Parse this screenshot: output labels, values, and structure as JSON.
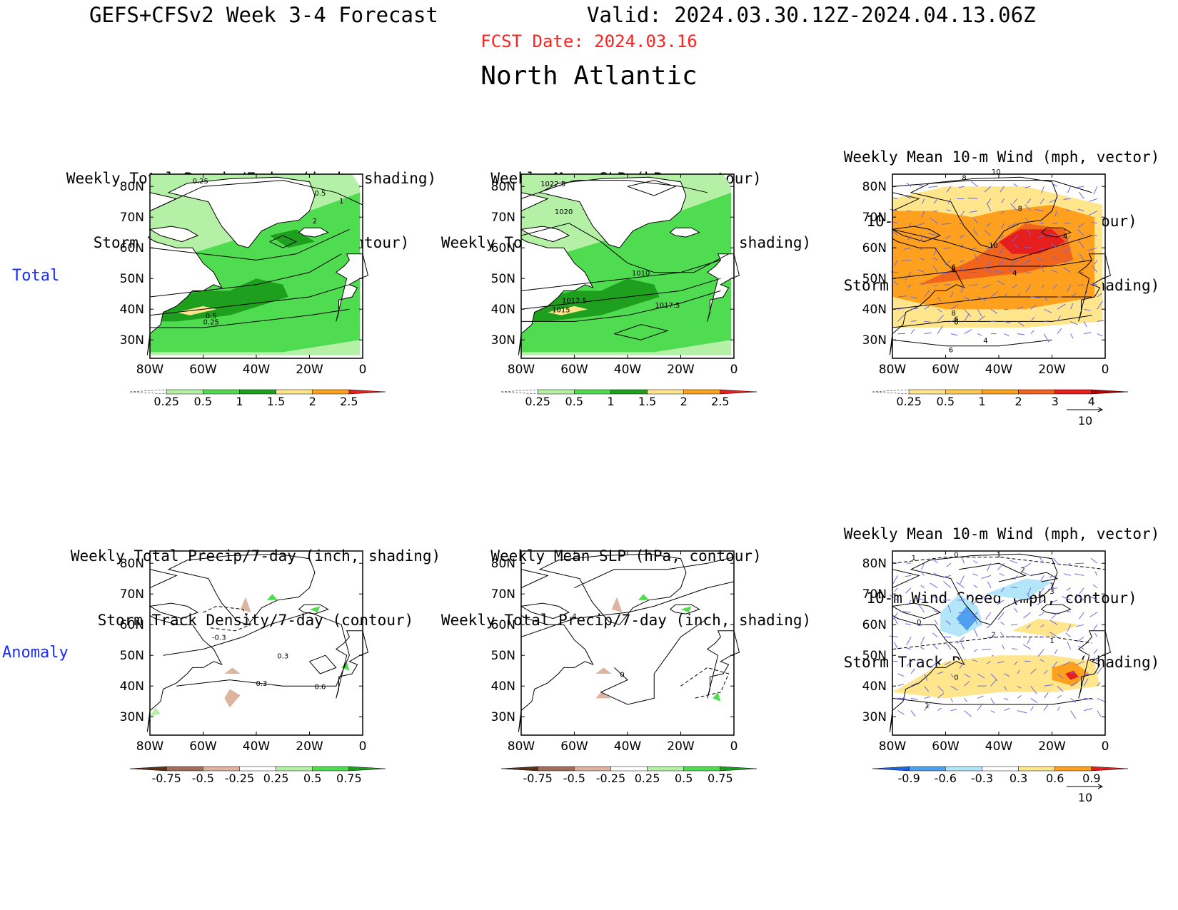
{
  "header": {
    "title_left": "GEFS+CFSv2 Week 3-4 Forecast",
    "title_right": "Valid: 2024.03.30.12Z-2024.04.13.06Z",
    "fcst_date": "FCST Date: 2024.03.16",
    "region": "North Atlantic"
  },
  "rows": [
    {
      "label": "Total"
    },
    {
      "label": "Anomaly"
    }
  ],
  "axes": {
    "lat_labels": [
      "80N",
      "70N",
      "60N",
      "50N",
      "40N",
      "30N"
    ],
    "lon_labels": [
      "80W",
      "60W",
      "40W",
      "20W",
      "0"
    ]
  },
  "panels": [
    {
      "title": [
        "Weekly Total Precip/7-day (inch, shading)",
        "Storm Track Density/7-day (contour)"
      ],
      "colorbar": {
        "labels": [
          "0.25",
          "0.5",
          "1",
          "1.5",
          "2",
          "2.5"
        ],
        "colors": [
          "#b4f0a5",
          "#50dc50",
          "#1ea01e",
          "#ffe68c",
          "#ffa01e",
          "#e61e1e"
        ]
      },
      "contour_labels": [
        "0.25",
        "0.5",
        "1",
        "2",
        "0.5",
        "0.25"
      ]
    },
    {
      "title": [
        "Weekly Mean SLP (hPa, contour)",
        "Weekly Total Precip/7-day (inch, shading)"
      ],
      "colorbar": {
        "labels": [
          "0.25",
          "0.5",
          "1",
          "1.5",
          "2",
          "2.5"
        ],
        "colors": [
          "#b4f0a5",
          "#50dc50",
          "#1ea01e",
          "#ffe68c",
          "#ffa01e",
          "#e61e1e"
        ]
      },
      "contour_labels": [
        "1022.5",
        "1020",
        "1010",
        "1012.5",
        "1015",
        "1017.5"
      ]
    },
    {
      "title": [
        "Weekly Mean 10-m Wind (mph, vector)",
        "10-m Wind Speed (mph, contour)",
        "Storm Track Density/7-day (shading)"
      ],
      "colorbar": {
        "labels": [
          "0.25",
          "0.5",
          "1",
          "2",
          "3",
          "4"
        ],
        "colors": [
          "#ffe68c",
          "#ffc850",
          "#ffa01e",
          "#f0641e",
          "#e61e1e",
          "#b40000"
        ]
      },
      "vector_ref": "10",
      "contour_labels": [
        "8",
        "10",
        "6",
        "8",
        "4",
        "6",
        "10",
        "4",
        "6",
        "8",
        "6",
        "4",
        "6"
      ]
    },
    {
      "title": [
        "Weekly Total Precip/7-day (inch, shading)",
        "Storm Track Density/7-day (contour)"
      ],
      "colorbar": {
        "labels": [
          "-0.75",
          "-0.5",
          "-0.25",
          "0.25",
          "0.5",
          "0.75"
        ],
        "colors": [
          "#5a3219",
          "#a06e5a",
          "#dcb4a0",
          "#ffffff",
          "#b4f0a5",
          "#50dc50",
          "#1ea01e"
        ]
      },
      "contour_labels": [
        "-0.3",
        "0.3",
        "0.3",
        "0.6"
      ]
    },
    {
      "title": [
        "Weekly Mean SLP (hPa, contour)",
        "Weekly Total Precip/7-day (inch, shading)"
      ],
      "colorbar": {
        "labels": [
          "-0.75",
          "-0.5",
          "-0.25",
          "0.25",
          "0.5",
          "0.75"
        ],
        "colors": [
          "#5a3219",
          "#a06e5a",
          "#dcb4a0",
          "#ffffff",
          "#b4f0a5",
          "#50dc50",
          "#1ea01e"
        ]
      },
      "contour_labels": [
        "4",
        "0"
      ]
    },
    {
      "title": [
        "Weekly Mean 10-m Wind (mph, vector)",
        "10-m Wind Speed (mph, contour)",
        "Storm Track Density/7-day (shading)"
      ],
      "colorbar": {
        "labels": [
          "-0.9",
          "-0.6",
          "-0.3",
          "0.3",
          "0.6",
          "0.9"
        ],
        "colors": [
          "#1e64e6",
          "#50a0f0",
          "#b4e6fa",
          "#ffffff",
          "#ffe68c",
          "#ffa01e",
          "#e61e1e"
        ]
      },
      "vector_ref": "10",
      "contour_labels": [
        "1",
        "0",
        "1",
        "2",
        "1",
        "3",
        "0",
        "2",
        "1",
        "0",
        "1"
      ]
    }
  ]
}
